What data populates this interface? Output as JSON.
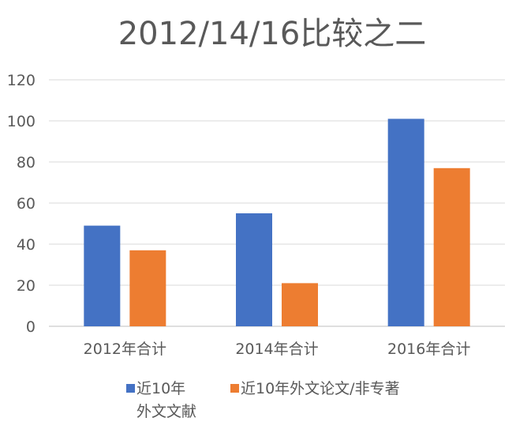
{
  "chart_data": {
    "type": "bar",
    "title": "2012/14/16比较之二",
    "categories": [
      "2012年合计",
      "2014年合计",
      "2016年合计"
    ],
    "series": [
      {
        "name": [
          "近10年",
          "外文文献"
        ],
        "color": "#4472c4",
        "values": [
          49,
          55,
          101
        ]
      },
      {
        "name": [
          "近10年外文论文/非专著"
        ],
        "color": "#ed7d31",
        "values": [
          37,
          21,
          77
        ]
      }
    ],
    "yticks": [
      "0",
      "20",
      "40",
      "60",
      "80",
      "100",
      "120"
    ],
    "ylim": [
      0,
      120
    ],
    "grid": true,
    "legend_position": "bottom"
  }
}
